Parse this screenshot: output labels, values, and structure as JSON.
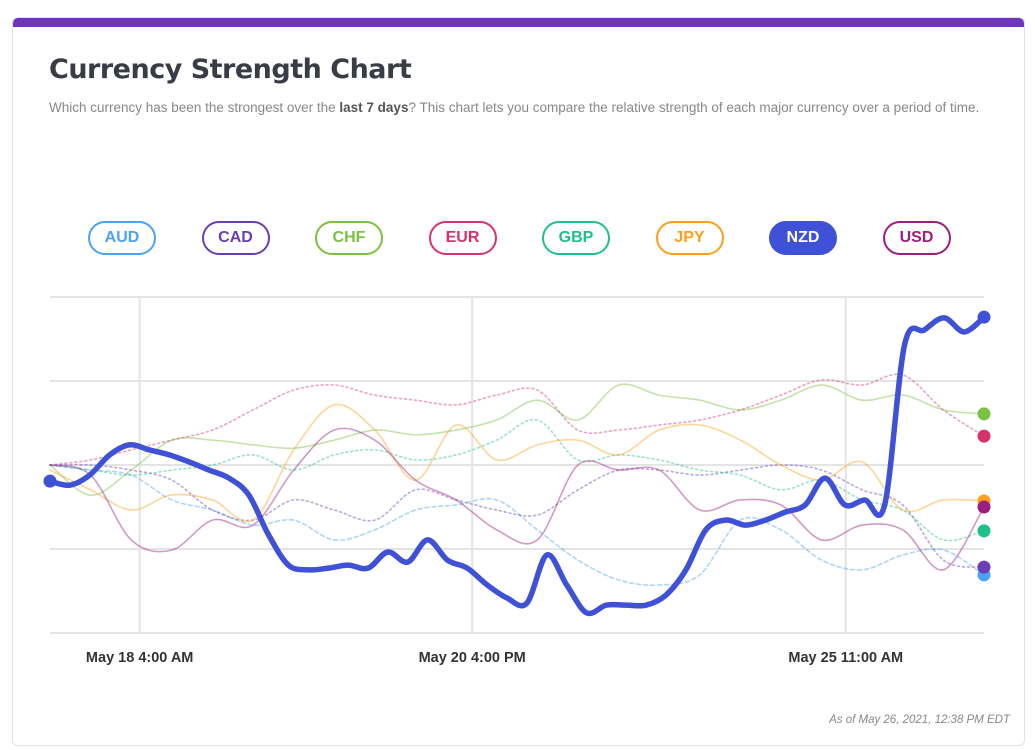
{
  "header": {
    "title": "Currency Strength Chart",
    "desc_pre": "Which currency has been the strongest over the ",
    "desc_bold": "last 7 days",
    "desc_post": "? This chart lets you compare the relative strength of each major currency over a period of time."
  },
  "footer": "As of May 26, 2021, 12:38 PM EDT",
  "colors": {
    "accent_bar": "#6f35c0"
  },
  "currencies": [
    {
      "code": "AUD",
      "color": "#4aa3f5",
      "selected": false
    },
    {
      "code": "CAD",
      "color": "#6a3fb5",
      "selected": false
    },
    {
      "code": "CHF",
      "color": "#7bc142",
      "selected": false
    },
    {
      "code": "EUR",
      "color": "#d6336c",
      "selected": false
    },
    {
      "code": "GBP",
      "color": "#20c08a",
      "selected": false
    },
    {
      "code": "JPY",
      "color": "#ff9f1a",
      "selected": false
    },
    {
      "code": "NZD",
      "color": "#3f51d6",
      "selected": true
    },
    {
      "code": "USD",
      "color": "#9c1f7f",
      "selected": false
    }
  ],
  "chart_data": {
    "type": "line",
    "title": "",
    "xlabel": "",
    "ylabel": "",
    "ylim": [
      0,
      100
    ],
    "grid": true,
    "legend": "top",
    "x_ticks": [
      {
        "label": "May 18 4:00 AM",
        "at": 0.096
      },
      {
        "label": "May 20 4:00 PM",
        "at": 0.452
      },
      {
        "label": "May 25 11:00 AM",
        "at": 0.852
      }
    ],
    "series": [
      {
        "name": "AUD",
        "style": "dashed",
        "values": [
          50,
          48.5,
          47,
          39.6,
          36.6,
          32.1,
          33.6,
          27.7,
          30.7,
          36.6,
          38.1,
          39.6,
          30.7,
          21.7,
          15.8,
          14.3,
          17.3,
          33.6,
          30.7,
          21.7,
          18.8,
          23.2,
          24.7,
          17.3
        ]
      },
      {
        "name": "CAD",
        "style": "dotted",
        "values": [
          50,
          50,
          48.5,
          45.5,
          36.6,
          33.6,
          39.6,
          36.6,
          33.6,
          42.6,
          39.6,
          36.6,
          35.1,
          42.6,
          48.5,
          48.5,
          47,
          48.5,
          50,
          48.5,
          42.6,
          38.1,
          21.7,
          19.6
        ]
      },
      {
        "name": "CHF",
        "style": "solid",
        "values": [
          50,
          41,
          48.5,
          57.4,
          57.4,
          56,
          55,
          57.4,
          60.4,
          59,
          60.4,
          63.4,
          69.3,
          63.4,
          73.8,
          70.8,
          69.3,
          66.4,
          69.3,
          73.8,
          69.3,
          70.8,
          66.4,
          65.2
        ]
      },
      {
        "name": "EUR",
        "style": "dotted",
        "values": [
          50,
          51.5,
          54.5,
          57.4,
          60.4,
          66.4,
          72.3,
          73.8,
          70.8,
          69.3,
          67.9,
          70.8,
          72.3,
          60.4,
          60.4,
          61.9,
          63.4,
          66.4,
          70.8,
          75.3,
          73.8,
          76.8,
          66.4,
          58.6
        ]
      },
      {
        "name": "GBP",
        "style": "dotted",
        "values": [
          50,
          48.5,
          47,
          48.5,
          50,
          53,
          48.5,
          53,
          54.5,
          51.5,
          53,
          57.4,
          63.4,
          51.5,
          53,
          51.5,
          48.5,
          47,
          42.6,
          45.5,
          39.6,
          36.6,
          27.7,
          30.4
        ]
      },
      {
        "name": "JPY",
        "style": "solid",
        "values": [
          48.5,
          42.6,
          36.6,
          41.1,
          39.6,
          33.6,
          54.5,
          67.9,
          60.4,
          45.5,
          61.9,
          51.5,
          56,
          57.4,
          53,
          60.4,
          61.9,
          57.4,
          50,
          45.5,
          50.9,
          36.6,
          39.6,
          39.3
        ]
      },
      {
        "name": "USD",
        "style": "solid",
        "values": [
          50,
          47,
          27.7,
          24.7,
          33.6,
          32.1,
          48.5,
          60.4,
          57.4,
          45.5,
          39.6,
          30.7,
          27.7,
          50,
          48.5,
          48.5,
          36.6,
          39.6,
          38.1,
          27.7,
          32.1,
          30.7,
          18.8,
          37.5
        ]
      },
      {
        "name": "NZD",
        "style": "solid",
        "values": [
          45.2,
          44,
          47,
          53,
          56,
          54.5,
          53,
          50.9,
          48.5,
          46.1,
          41.1,
          29.2,
          20.2,
          18.8,
          19.3,
          20.2,
          19.3,
          24.1,
          21.1,
          27.7,
          21.7,
          19.3,
          14.3,
          10.4,
          8.9,
          23.2,
          14.3,
          6,
          8.3,
          8.3,
          8.3,
          11.3,
          18.8,
          30.7,
          33.6,
          32.1,
          33.6,
          36,
          38.1,
          46.1,
          38.1,
          39.6,
          38.1,
          85.7,
          90.2,
          93.8,
          89.6,
          94
        ]
      }
    ]
  }
}
